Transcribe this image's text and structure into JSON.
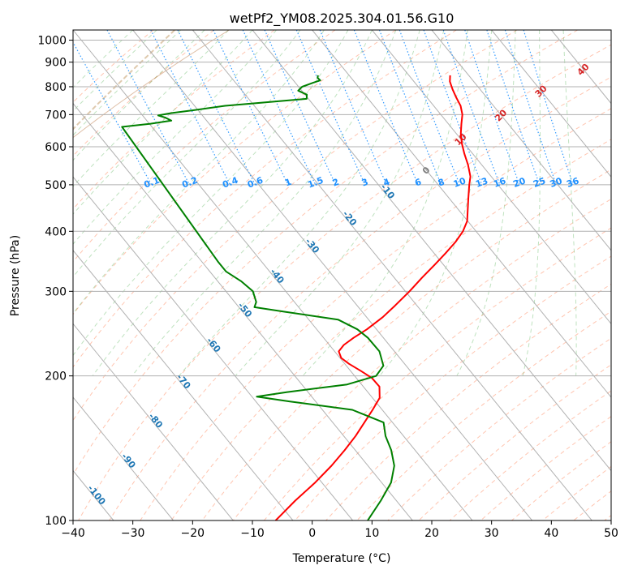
{
  "chart_data": {
    "type": "line",
    "subtype": "skew-t log-p",
    "title": "wetPf2_YM08.2025.304.01.56.G10",
    "xlabel": "Temperature (°C)",
    "ylabel": "Pressure (hPa)",
    "xlim": [
      -40,
      50
    ],
    "ylim": [
      1050,
      100
    ],
    "x_ticks": [
      -40,
      -30,
      -20,
      -10,
      0,
      10,
      20,
      30,
      40,
      50
    ],
    "x_tick_labels": [
      "−40",
      "−30",
      "−20",
      "−10",
      "0",
      "10",
      "20",
      "30",
      "40",
      "50"
    ],
    "y_ticks": [
      1000,
      900,
      800,
      700,
      600,
      500,
      400,
      300,
      200,
      100
    ],
    "y_tick_labels": [
      "1000",
      "900",
      "800",
      "700",
      "600",
      "500",
      "400",
      "300",
      "200",
      "100"
    ],
    "grid": true,
    "series": [
      {
        "name": "Temperature",
        "color": "#ff0000",
        "points": [
          {
            "p": 845,
            "t": 16.9
          },
          {
            "p": 820,
            "t": 16.0
          },
          {
            "p": 790,
            "t": 15.4
          },
          {
            "p": 760,
            "t": 14.9
          },
          {
            "p": 730,
            "t": 14.5
          },
          {
            "p": 700,
            "t": 13.6
          },
          {
            "p": 670,
            "t": 12.2
          },
          {
            "p": 640,
            "t": 10.8
          },
          {
            "p": 610,
            "t": 9.6
          },
          {
            "p": 580,
            "t": 8.6
          },
          {
            "p": 550,
            "t": 7.7
          },
          {
            "p": 520,
            "t": 6.5
          },
          {
            "p": 500,
            "t": 5.2
          },
          {
            "p": 470,
            "t": 3.3
          },
          {
            "p": 440,
            "t": 1.3
          },
          {
            "p": 420,
            "t": -0.1
          },
          {
            "p": 400,
            "t": -2.2
          },
          {
            "p": 380,
            "t": -4.9
          },
          {
            "p": 360,
            "t": -8.1
          },
          {
            "p": 340,
            "t": -11.6
          },
          {
            "p": 320,
            "t": -15.4
          },
          {
            "p": 300,
            "t": -19.3
          },
          {
            "p": 280,
            "t": -23.7
          },
          {
            "p": 265,
            "t": -27.3
          },
          {
            "p": 250,
            "t": -31.6
          },
          {
            "p": 240,
            "t": -35.0
          },
          {
            "p": 232,
            "t": -37.6
          },
          {
            "p": 225,
            "t": -39.3
          },
          {
            "p": 218,
            "t": -39.8
          },
          {
            "p": 212,
            "t": -39.3
          },
          {
            "p": 205,
            "t": -38.3
          },
          {
            "p": 198,
            "t": -37.4
          },
          {
            "p": 190,
            "t": -37.3
          },
          {
            "p": 180,
            "t": -38.8
          },
          {
            "p": 170,
            "t": -41.6
          },
          {
            "p": 160,
            "t": -44.7
          },
          {
            "p": 150,
            "t": -48.0
          },
          {
            "p": 140,
            "t": -51.8
          },
          {
            "p": 130,
            "t": -56.1
          },
          {
            "p": 120,
            "t": -61.1
          },
          {
            "p": 110,
            "t": -66.9
          },
          {
            "p": 100,
            "t": -72.9
          }
        ]
      },
      {
        "name": "Dewpoint",
        "color": "#008000",
        "points": [
          {
            "p": 845,
            "t": -5.2
          },
          {
            "p": 835,
            "t": -5.6
          },
          {
            "p": 825,
            "t": -5.5
          },
          {
            "p": 815,
            "t": -7.1
          },
          {
            "p": 800,
            "t": -9.4
          },
          {
            "p": 785,
            "t": -10.6
          },
          {
            "p": 770,
            "t": -9.7
          },
          {
            "p": 755,
            "t": -10.3
          },
          {
            "p": 745,
            "t": -16.0
          },
          {
            "p": 730,
            "t": -24.9
          },
          {
            "p": 715,
            "t": -30.7
          },
          {
            "p": 705,
            "t": -34.9
          },
          {
            "p": 697,
            "t": -37.4
          },
          {
            "p": 690,
            "t": -36.5
          },
          {
            "p": 680,
            "t": -35.9
          },
          {
            "p": 670,
            "t": -39.8
          },
          {
            "p": 660,
            "t": -45.0
          },
          {
            "p": 345,
            "t": -47.3
          },
          {
            "p": 330,
            "t": -47.3
          },
          {
            "p": 315,
            "t": -46.1
          },
          {
            "p": 300,
            "t": -45.5
          },
          {
            "p": 285,
            "t": -46.4
          },
          {
            "p": 278,
            "t": -47.4
          },
          {
            "p": 272,
            "t": -43.0
          },
          {
            "p": 262,
            "t": -35.1
          },
          {
            "p": 250,
            "t": -33.2
          },
          {
            "p": 240,
            "t": -32.6
          },
          {
            "p": 225,
            "t": -32.5
          },
          {
            "p": 210,
            "t": -33.8
          },
          {
            "p": 200,
            "t": -36.4
          },
          {
            "p": 192,
            "t": -42.4
          },
          {
            "p": 185,
            "t": -53.6
          },
          {
            "p": 181,
            "t": -59.2
          },
          {
            "p": 177,
            "t": -54.4
          },
          {
            "p": 170,
            "t": -45.0
          },
          {
            "p": 160,
            "t": -41.5
          },
          {
            "p": 150,
            "t": -43.0
          },
          {
            "p": 140,
            "t": -44.0
          },
          {
            "p": 130,
            "t": -45.6
          },
          {
            "p": 120,
            "t": -48.4
          },
          {
            "p": 110,
            "t": -52.6
          },
          {
            "p": 100,
            "t": -57.5
          }
        ]
      }
    ],
    "reference_lines": {
      "isotherm_color": "#a9a9a9",
      "dry_adiabat_color": "#ff7f50",
      "moist_adiabat_color": "#2ca02c",
      "mixing_ratio_color": "#1e90ff",
      "cape_boundary_color": "#d2b48c",
      "isotherm_labels": [
        {
          "text": "-100",
          "t": -100,
          "p": 112
        },
        {
          "text": "-90",
          "t": -90,
          "p": 132
        },
        {
          "text": "-80",
          "t": -80,
          "p": 160
        },
        {
          "text": "-70",
          "t": -70,
          "p": 193
        },
        {
          "text": "-60",
          "t": -60,
          "p": 230
        },
        {
          "text": "-50",
          "t": -50,
          "p": 272
        },
        {
          "text": "-40",
          "t": -40,
          "p": 320
        },
        {
          "text": "-30",
          "t": -30,
          "p": 370
        },
        {
          "text": "-20",
          "t": -20,
          "p": 422
        },
        {
          "text": "-10",
          "t": -10,
          "p": 480
        }
      ],
      "mixing_ratio_labels": [
        "0.1",
        "0.2",
        "0.4",
        "0.6",
        "1",
        "1.5",
        "2",
        "3",
        "4",
        "6",
        "8",
        "10",
        "13",
        "16",
        "20",
        "25",
        "30",
        "36"
      ],
      "mixing_ratio_values": [
        0.1,
        0.2,
        0.4,
        0.6,
        1,
        1.5,
        2,
        3,
        4,
        6,
        8,
        10,
        13,
        16,
        20,
        25,
        30,
        36
      ],
      "moist_adiabat_labels": [
        {
          "text": "0",
          "t": 0,
          "p": 530,
          "kind": "zero"
        },
        {
          "text": "10",
          "t": 10,
          "p": 615,
          "kind": "moist"
        },
        {
          "text": "20",
          "t": 20,
          "p": 690,
          "kind": "moist"
        },
        {
          "text": "30",
          "t": 30,
          "p": 775,
          "kind": "moist"
        },
        {
          "text": "40",
          "t": 40,
          "p": 860,
          "kind": "moist"
        }
      ]
    }
  }
}
